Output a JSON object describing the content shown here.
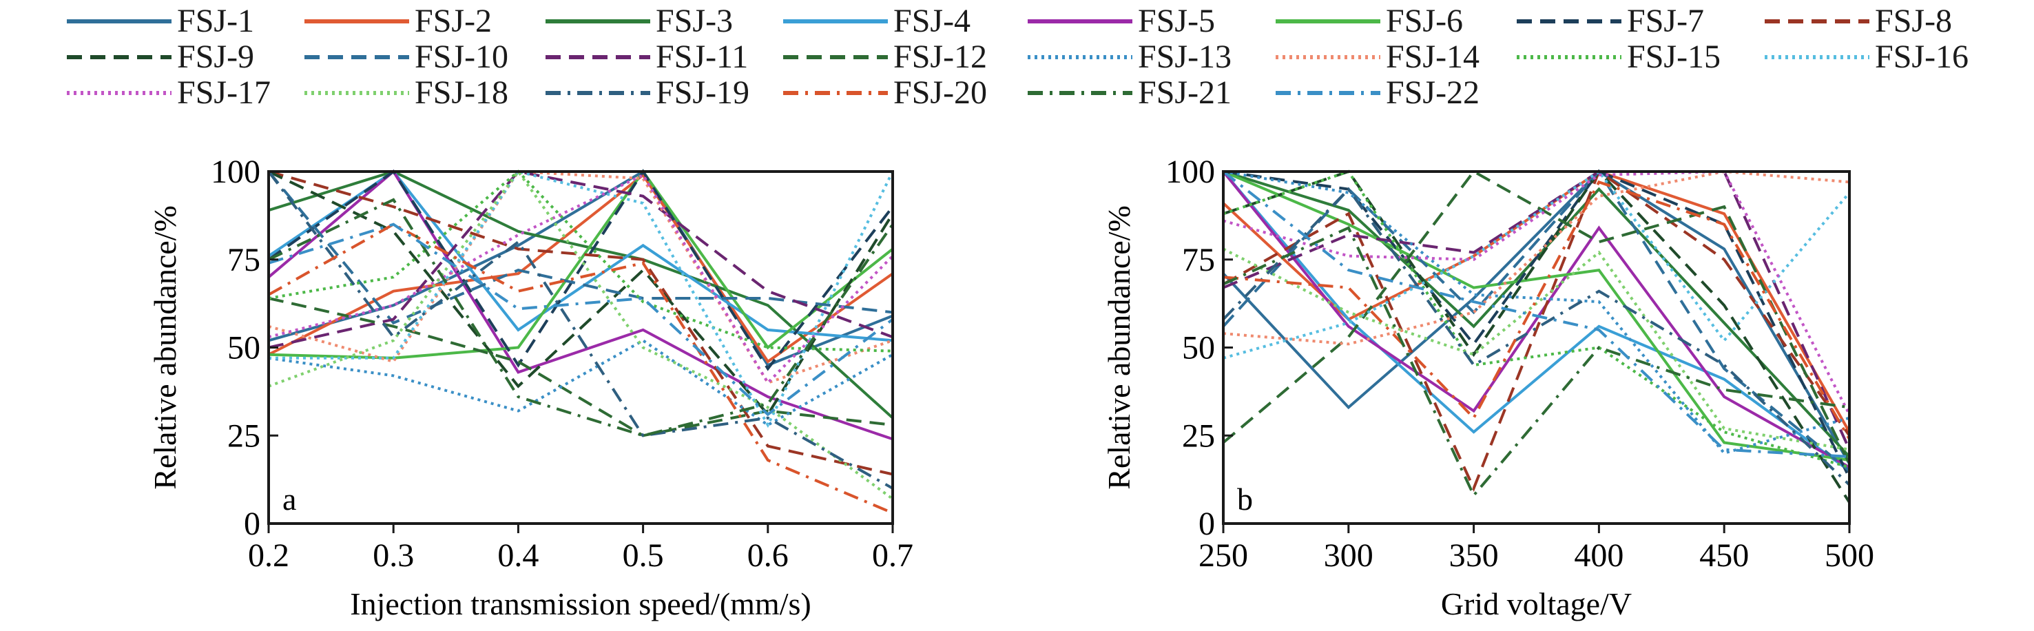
{
  "legend": [
    {
      "name": "FSJ-1",
      "color": "#2f6f99",
      "dash": "solid"
    },
    {
      "name": "FSJ-2",
      "color": "#e05a33",
      "dash": "solid"
    },
    {
      "name": "FSJ-3",
      "color": "#2e7d3a",
      "dash": "solid"
    },
    {
      "name": "FSJ-4",
      "color": "#3a9fd6",
      "dash": "solid"
    },
    {
      "name": "FSJ-5",
      "color": "#9b2aa8",
      "dash": "solid"
    },
    {
      "name": "FSJ-6",
      "color": "#4cb848",
      "dash": "solid"
    },
    {
      "name": "FSJ-7",
      "color": "#1d3f5a",
      "dash": "dash"
    },
    {
      "name": "FSJ-8",
      "color": "#9b3524",
      "dash": "dash"
    },
    {
      "name": "FSJ-9",
      "color": "#1f4a2a",
      "dash": "dash"
    },
    {
      "name": "FSJ-10",
      "color": "#2f6f99",
      "dash": "dash"
    },
    {
      "name": "FSJ-11",
      "color": "#6a2570",
      "dash": "dash"
    },
    {
      "name": "FSJ-12",
      "color": "#2e6b34",
      "dash": "dash"
    },
    {
      "name": "FSJ-13",
      "color": "#3a8fc6",
      "dash": "dot"
    },
    {
      "name": "FSJ-14",
      "color": "#ef8a6f",
      "dash": "dot"
    },
    {
      "name": "FSJ-15",
      "color": "#4cb848",
      "dash": "dot"
    },
    {
      "name": "FSJ-16",
      "color": "#56bde0",
      "dash": "dot"
    },
    {
      "name": "FSJ-17",
      "color": "#c255c6",
      "dash": "dot"
    },
    {
      "name": "FSJ-18",
      "color": "#7fd06e",
      "dash": "dot"
    },
    {
      "name": "FSJ-19",
      "color": "#2f5f80",
      "dash": "dashdot"
    },
    {
      "name": "FSJ-20",
      "color": "#d9542b",
      "dash": "dashdot"
    },
    {
      "name": "FSJ-21",
      "color": "#2e6b34",
      "dash": "dashdot"
    },
    {
      "name": "FSJ-22",
      "color": "#3a8fc6",
      "dash": "dashdot"
    }
  ],
  "chart_data": [
    {
      "type": "line",
      "panel_label": "a",
      "xlabel": "Injection transmission speed/(mm/s)",
      "ylabel": "Relative abundance/%",
      "x": [
        0.2,
        0.3,
        0.4,
        0.5,
        0.6,
        0.7
      ],
      "x_tick_labels": [
        "0.2",
        "0.3",
        "0.4",
        "0.5",
        "0.6",
        "0.7"
      ],
      "y_ticks": [
        0,
        25,
        50,
        75,
        100
      ],
      "y_tick_labels": [
        "0",
        "25",
        "50",
        "75",
        "100"
      ],
      "xlim": [
        0.2,
        0.7
      ],
      "ylim": [
        0,
        100
      ],
      "grid": false,
      "series": [
        {
          "name": "FSJ-1",
          "values": [
            52,
            62,
            79,
            100,
            45,
            59
          ]
        },
        {
          "name": "FSJ-2",
          "values": [
            48,
            66,
            71,
            99,
            46,
            71
          ]
        },
        {
          "name": "FSJ-3",
          "values": [
            89,
            100,
            83,
            75,
            62,
            30
          ]
        },
        {
          "name": "FSJ-4",
          "values": [
            76,
            100,
            55,
            79,
            55,
            52
          ]
        },
        {
          "name": "FSJ-5",
          "values": [
            70,
            100,
            43,
            55,
            36,
            24
          ]
        },
        {
          "name": "FSJ-6",
          "values": [
            48,
            47,
            50,
            100,
            50,
            78
          ]
        },
        {
          "name": "FSJ-7",
          "values": [
            75,
            100,
            45,
            100,
            44,
            90
          ]
        },
        {
          "name": "FSJ-8",
          "values": [
            100,
            90,
            78,
            75,
            22,
            14
          ]
        },
        {
          "name": "FSJ-9",
          "values": [
            100,
            83,
            39,
            72,
            31,
            88
          ]
        },
        {
          "name": "FSJ-10",
          "values": [
            100,
            57,
            72,
            64,
            64,
            60
          ]
        },
        {
          "name": "FSJ-11",
          "values": [
            50,
            58,
            100,
            93,
            66,
            53
          ]
        },
        {
          "name": "FSJ-12",
          "values": [
            64,
            56,
            46,
            25,
            32,
            28
          ]
        },
        {
          "name": "FSJ-13",
          "values": [
            47,
            42,
            32,
            52,
            28,
            48
          ]
        },
        {
          "name": "FSJ-14",
          "values": [
            56,
            46,
            100,
            98,
            40,
            52
          ]
        },
        {
          "name": "FSJ-15",
          "values": [
            64,
            70,
            100,
            63,
            50,
            49
          ]
        },
        {
          "name": "FSJ-16",
          "values": [
            47,
            47,
            100,
            91,
            28,
            100
          ]
        },
        {
          "name": "FSJ-17",
          "values": [
            53,
            62,
            82,
            99,
            40,
            76
          ]
        },
        {
          "name": "FSJ-18",
          "values": [
            39,
            52,
            100,
            50,
            33,
            7
          ]
        },
        {
          "name": "FSJ-19",
          "values": [
            100,
            53,
            80,
            25,
            30,
            10
          ]
        },
        {
          "name": "FSJ-20",
          "values": [
            65,
            85,
            66,
            74,
            18,
            3
          ]
        },
        {
          "name": "FSJ-21",
          "values": [
            75,
            92,
            36,
            25,
            34,
            85
          ]
        },
        {
          "name": "FSJ-22",
          "values": [
            74,
            85,
            61,
            64,
            31,
            58
          ]
        }
      ]
    },
    {
      "type": "line",
      "panel_label": "b",
      "xlabel": "Grid voltage/V",
      "ylabel": "Relative abundance/%",
      "x": [
        250,
        300,
        350,
        400,
        450,
        500
      ],
      "x_tick_labels": [
        "250",
        "300",
        "350",
        "400",
        "450",
        "500"
      ],
      "y_ticks": [
        0,
        25,
        50,
        75,
        100
      ],
      "y_tick_labels": [
        "0",
        "25",
        "50",
        "75",
        "100"
      ],
      "xlim": [
        250,
        500
      ],
      "ylim": [
        0,
        100
      ],
      "grid": false,
      "series": [
        {
          "name": "FSJ-1",
          "values": [
            71,
            33,
            64,
            100,
            78,
            17
          ]
        },
        {
          "name": "FSJ-2",
          "values": [
            91,
            58,
            76,
            100,
            88,
            26
          ]
        },
        {
          "name": "FSJ-3",
          "values": [
            100,
            89,
            56,
            95,
            57,
            19
          ]
        },
        {
          "name": "FSJ-4",
          "values": [
            100,
            58,
            26,
            56,
            41,
            15
          ]
        },
        {
          "name": "FSJ-5",
          "values": [
            100,
            56,
            32,
            84,
            36,
            16
          ]
        },
        {
          "name": "FSJ-6",
          "values": [
            100,
            85,
            67,
            72,
            23,
            18
          ]
        },
        {
          "name": "FSJ-7",
          "values": [
            100,
            95,
            51,
            100,
            85,
            13
          ]
        },
        {
          "name": "FSJ-8",
          "values": [
            68,
            88,
            10,
            100,
            75,
            25
          ]
        },
        {
          "name": "FSJ-9",
          "values": [
            88,
            100,
            48,
            100,
            62,
            6
          ]
        },
        {
          "name": "FSJ-10",
          "values": [
            56,
            95,
            60,
            100,
            44,
            15
          ]
        },
        {
          "name": "FSJ-11",
          "values": [
            67,
            82,
            77,
            100,
            100,
            21
          ]
        },
        {
          "name": "FSJ-12",
          "values": [
            23,
            53,
            100,
            80,
            90,
            17
          ]
        },
        {
          "name": "FSJ-13",
          "values": [
            100,
            94,
            65,
            63,
            20,
            30
          ]
        },
        {
          "name": "FSJ-14",
          "values": [
            54,
            51,
            60,
            93,
            100,
            97
          ]
        },
        {
          "name": "FSJ-15",
          "values": [
            88,
            100,
            45,
            50,
            26,
            16
          ]
        },
        {
          "name": "FSJ-16",
          "values": [
            47,
            57,
            76,
            100,
            52,
            94
          ]
        },
        {
          "name": "FSJ-17",
          "values": [
            86,
            76,
            75,
            99,
            100,
            31
          ]
        },
        {
          "name": "FSJ-18",
          "values": [
            78,
            60,
            48,
            77,
            27,
            21
          ]
        },
        {
          "name": "FSJ-19",
          "values": [
            58,
            95,
            45,
            66,
            45,
            11
          ]
        },
        {
          "name": "FSJ-20",
          "values": [
            70,
            67,
            30,
            97,
            85,
            24
          ]
        },
        {
          "name": "FSJ-21",
          "values": [
            68,
            84,
            8,
            50,
            38,
            33
          ]
        },
        {
          "name": "FSJ-22",
          "values": [
            100,
            72,
            63,
            55,
            21,
            19
          ]
        }
      ]
    }
  ]
}
